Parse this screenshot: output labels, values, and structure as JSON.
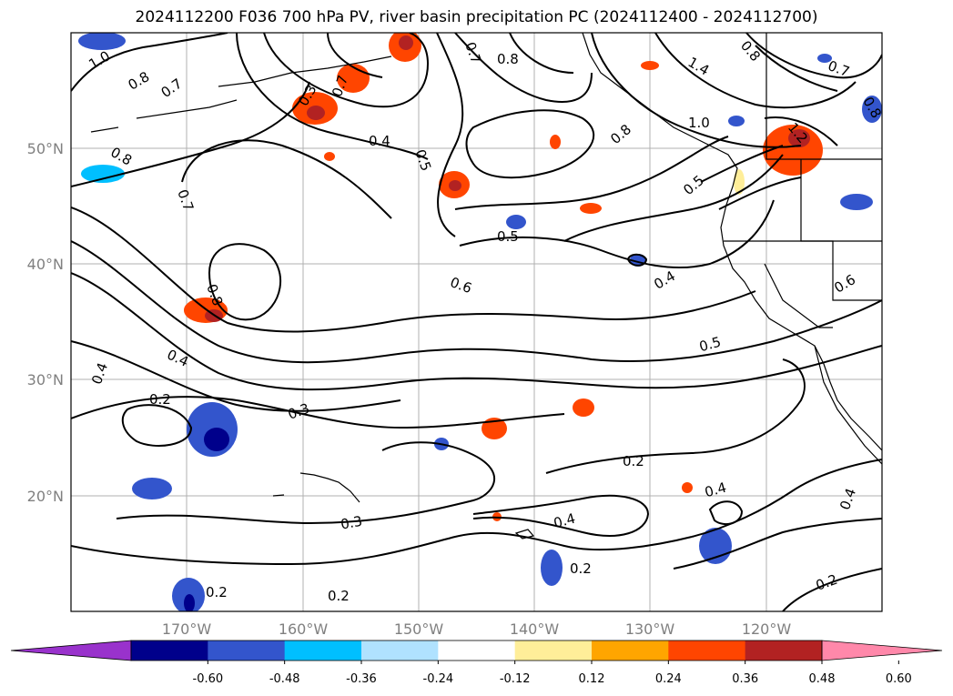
{
  "title": "2024112200 F036 700 hPa PV, river basin precipitation PC (2024112400 - 2024112700)",
  "map": {
    "projection": "cylindrical",
    "lon_range": [
      -180,
      -110
    ],
    "lat_range": [
      10,
      60
    ],
    "grid": true,
    "lon_ticks": [
      {
        "lon": -170,
        "label": "170°W"
      },
      {
        "lon": -160,
        "label": "160°W"
      },
      {
        "lon": -150,
        "label": "150°W"
      },
      {
        "lon": -140,
        "label": "140°W"
      },
      {
        "lon": -130,
        "label": "130°W"
      },
      {
        "lon": -120,
        "label": "120°W"
      }
    ],
    "lat_ticks": [
      {
        "lat": 20,
        "label": "20°N"
      },
      {
        "lat": 30,
        "label": "30°N"
      },
      {
        "lat": 40,
        "label": "40°N"
      },
      {
        "lat": 50,
        "label": "50°N"
      }
    ],
    "pv_contour_labels": [
      "1.0",
      "0.8",
      "0.7",
      "0.3",
      "0.7",
      "0.7",
      "0.8",
      "0.8",
      "0.7",
      "1.4",
      "0.8",
      "0.8",
      "1.0",
      "0.4",
      "0.8",
      "0.5",
      "0.5",
      "1.2",
      "0.7",
      "0.5",
      "0.8",
      "0.6",
      "0.4",
      "0.6",
      "0.4",
      "0.5",
      "0.4",
      "0.2",
      "0.3",
      "0.2",
      "0.3",
      "0.4",
      "0.4",
      "0.2",
      "0.2",
      "0.2",
      "0.2"
    ],
    "colors": {
      "contour": "#000000",
      "coast": "#000000",
      "grid": "#b0b0b0"
    }
  },
  "colorbar": {
    "extend": "both",
    "labels": [
      "-0.60",
      "-0.48",
      "-0.36",
      "-0.24",
      "-0.12",
      "0.12",
      "0.24",
      "0.36",
      "0.48",
      "0.60"
    ],
    "colors": [
      "#9932cc",
      "#00008b",
      "#3355cc",
      "#00bfff",
      "#b0e2ff",
      "#ffffff",
      "#ffee99",
      "#ffa500",
      "#ff4500",
      "#b22222",
      "#ff88aa"
    ]
  }
}
